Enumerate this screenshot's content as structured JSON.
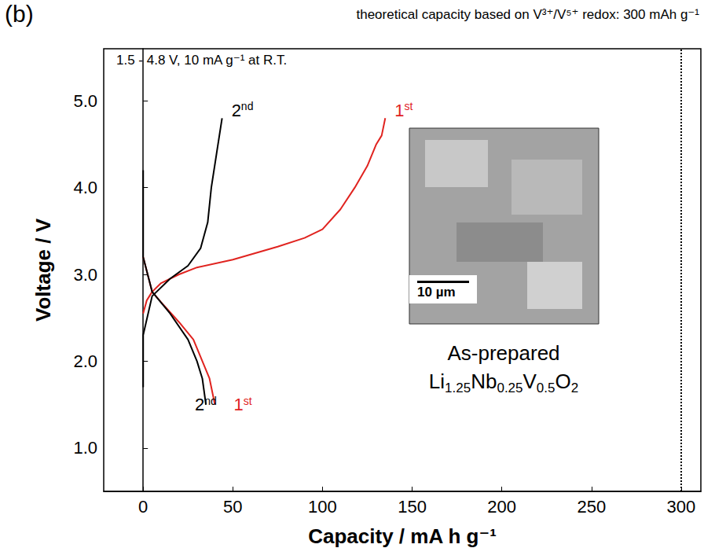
{
  "chart_data": {
    "type": "line",
    "panel_label": "(b)",
    "title": "theoretical capacity based on V³⁺/V⁵⁺ redox: 300 mAh g⁻¹",
    "annotations": [
      "1.5 - 4.8 V, 10 mA g⁻¹ at R.T.",
      "As-prepared",
      "Li1.25Nb0.25V0.5O2"
    ],
    "inset": {
      "scale_bar": "10 µm"
    },
    "x_label": "Capacity / mA h g⁻¹",
    "y_label": "Voltage / V",
    "xlim": [
      -22,
      311
    ],
    "xticks": [
      0,
      50,
      100,
      150,
      200,
      250,
      300
    ],
    "ylim": [
      0.5,
      5.6
    ],
    "yticks": [
      {
        "value": 1,
        "label": "1.0"
      },
      {
        "value": 2,
        "label": "2.0"
      },
      {
        "value": 3,
        "label": "3.0"
      },
      {
        "value": 4,
        "label": "4.0"
      },
      {
        "value": 5,
        "label": "5.0"
      }
    ],
    "reference_line": {
      "x": 300,
      "line_style": "dotted"
    },
    "grid": false,
    "series": [
      {
        "name": "1st",
        "color": "#e0231f",
        "x": [
          0,
          2,
          5,
          10,
          20,
          30,
          50,
          75,
          90,
          100,
          110,
          118,
          125,
          130,
          133,
          135
        ],
        "values": [
          2.55,
          2.7,
          2.8,
          2.9,
          3.0,
          3.08,
          3.17,
          3.32,
          3.42,
          3.52,
          3.75,
          4.0,
          4.25,
          4.5,
          4.6,
          4.8
        ]
      },
      {
        "name": "1st",
        "color": "#e0231f",
        "x": [
          0,
          5,
          10,
          20,
          28,
          33,
          37,
          40
        ],
        "values": [
          3.2,
          2.8,
          2.68,
          2.45,
          2.25,
          2.0,
          1.8,
          1.5
        ]
      },
      {
        "name": "2nd",
        "color": "#000000",
        "x": [
          0,
          0,
          5,
          15,
          25,
          32,
          36,
          38,
          41,
          44
        ],
        "values": [
          1.7,
          2.3,
          2.75,
          2.95,
          3.1,
          3.3,
          3.6,
          4.0,
          4.4,
          4.8
        ]
      },
      {
        "name": "2nd",
        "color": "#000000",
        "x": [
          0,
          0,
          5,
          15,
          25,
          30,
          33,
          35
        ],
        "values": [
          4.2,
          3.2,
          2.8,
          2.55,
          2.25,
          2.0,
          1.8,
          1.5
        ]
      }
    ]
  }
}
